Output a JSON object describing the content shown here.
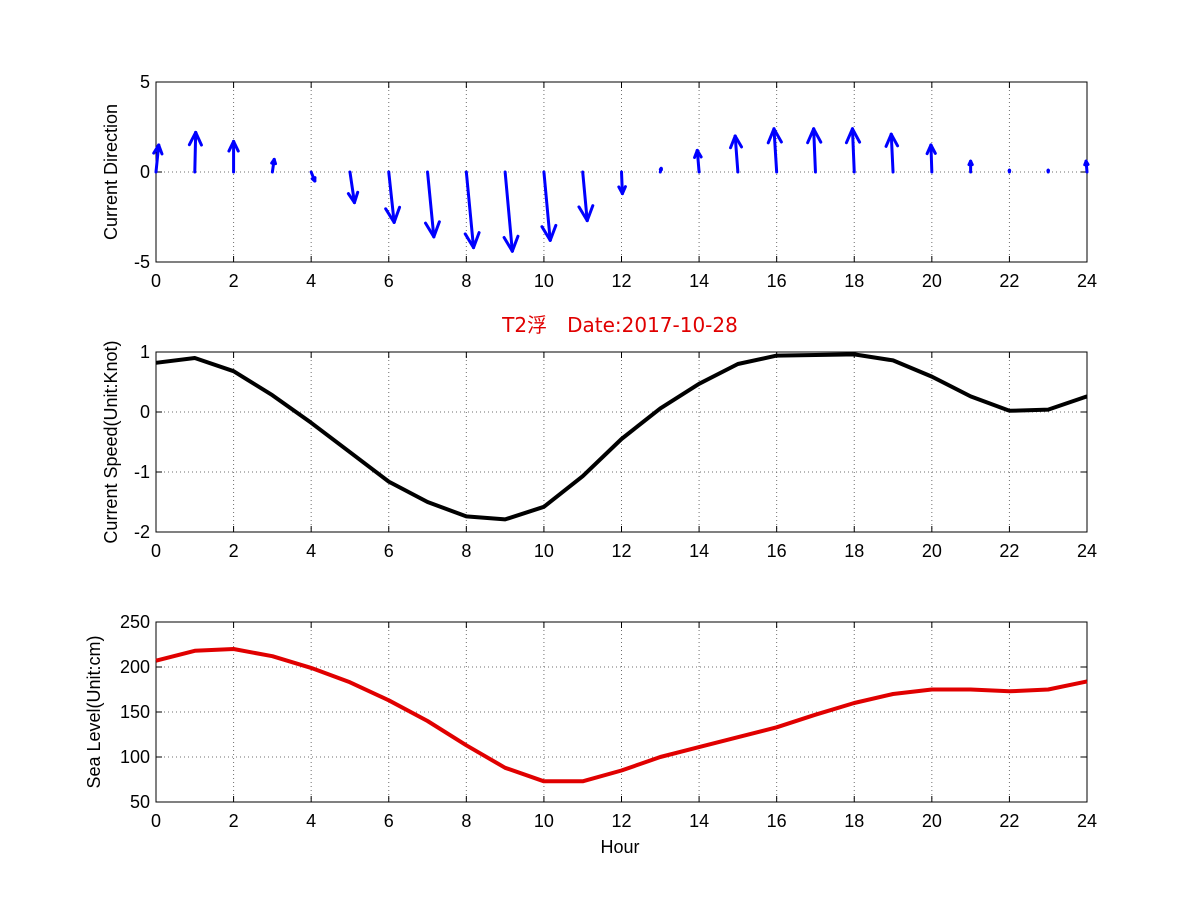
{
  "chart_data": [
    {
      "type": "quiver",
      "ylabel": "Current Direction",
      "xlim": [
        0,
        24
      ],
      "ylim": [
        -5,
        5
      ],
      "xticks": [
        "0",
        "2",
        "4",
        "6",
        "8",
        "10",
        "12",
        "14",
        "16",
        "18",
        "20",
        "22",
        "24"
      ],
      "yticks": [
        "-5",
        "0",
        "5"
      ],
      "grid": true,
      "color": "#0000ff",
      "x": [
        0,
        1,
        2,
        3,
        4,
        5,
        6,
        7,
        8,
        9,
        10,
        11,
        12,
        13,
        14,
        15,
        16,
        17,
        18,
        19,
        20,
        21,
        22,
        23,
        24
      ],
      "u": [
        0.15,
        0.05,
        0.0,
        0.1,
        0.2,
        0.25,
        0.3,
        0.35,
        0.4,
        0.4,
        0.35,
        0.25,
        0.05,
        0.05,
        -0.1,
        -0.15,
        -0.15,
        -0.1,
        -0.1,
        -0.1,
        -0.05,
        0.0,
        0.0,
        0.0,
        -0.05
      ],
      "v": [
        1.5,
        2.2,
        1.7,
        0.7,
        -0.5,
        -1.7,
        -2.8,
        -3.6,
        -4.2,
        -4.4,
        -3.8,
        -2.7,
        -1.2,
        0.2,
        1.2,
        2.0,
        2.4,
        2.4,
        2.4,
        2.1,
        1.5,
        0.6,
        0.1,
        0.1,
        0.6
      ]
    },
    {
      "type": "line",
      "title": "T2浮　Date:2017-10-28",
      "ylabel": "Current Speed(Unit:Knot)",
      "xlim": [
        0,
        24
      ],
      "ylim": [
        -2,
        1
      ],
      "xticks": [
        "0",
        "2",
        "4",
        "6",
        "8",
        "10",
        "12",
        "14",
        "16",
        "18",
        "20",
        "22",
        "24"
      ],
      "yticks": [
        "-2",
        "-1",
        "0",
        "1"
      ],
      "grid": true,
      "color": "#000000",
      "title_color": "#e00000",
      "x": [
        0,
        1,
        2,
        3,
        4,
        5,
        6,
        7,
        8,
        9,
        10,
        11,
        12,
        13,
        14,
        15,
        16,
        17,
        18,
        19,
        20,
        21,
        22,
        23,
        24
      ],
      "y": [
        0.82,
        0.9,
        0.68,
        0.28,
        -0.18,
        -0.67,
        -1.16,
        -1.5,
        -1.74,
        -1.79,
        -1.58,
        -1.07,
        -0.45,
        0.06,
        0.47,
        0.8,
        0.94,
        0.95,
        0.96,
        0.86,
        0.59,
        0.26,
        0.02,
        0.04,
        0.26
      ]
    },
    {
      "type": "line",
      "xlabel": "Hour",
      "ylabel": "Sea Level(Unit:cm)",
      "xlim": [
        0,
        24
      ],
      "ylim": [
        50,
        250
      ],
      "xticks": [
        "0",
        "2",
        "4",
        "6",
        "8",
        "10",
        "12",
        "14",
        "16",
        "18",
        "20",
        "22",
        "24"
      ],
      "yticks": [
        "50",
        "100",
        "150",
        "200",
        "250"
      ],
      "grid": true,
      "color": "#e00000",
      "x": [
        0,
        1,
        2,
        3,
        4,
        5,
        6,
        7,
        8,
        9,
        10,
        11,
        12,
        13,
        14,
        15,
        16,
        17,
        18,
        19,
        20,
        21,
        22,
        23,
        24
      ],
      "y": [
        207,
        218,
        220,
        212,
        199,
        183,
        163,
        140,
        113,
        88,
        73,
        73,
        85,
        100,
        111,
        122,
        133,
        147,
        160,
        170,
        175,
        175,
        173,
        175,
        184
      ]
    }
  ]
}
